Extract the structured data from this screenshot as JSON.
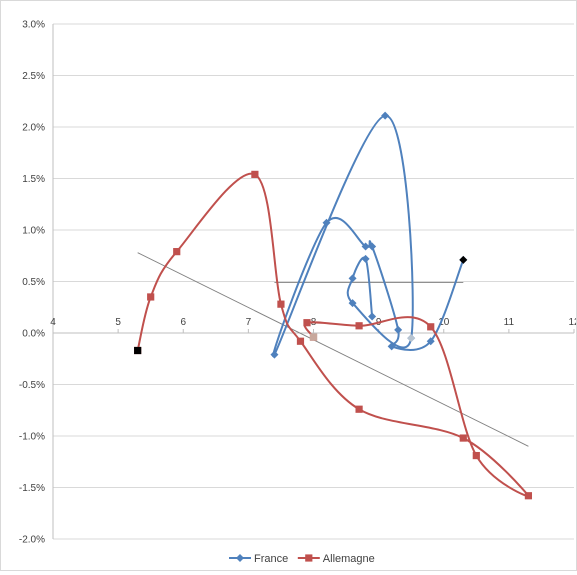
{
  "chart_data": {
    "type": "scatter",
    "title": "",
    "xlabel": "",
    "ylabel": "",
    "xlim": [
      4,
      12
    ],
    "ylim": [
      -2.0,
      3.0
    ],
    "x_ticks": [
      "4",
      "5",
      "6",
      "7",
      "8",
      "9",
      "10",
      "11",
      "12"
    ],
    "y_ticks": [
      "3.0%",
      "2.5%",
      "2.0%",
      "1.5%",
      "1.0%",
      "0.5%",
      "0.0%",
      "-0.5%",
      "-1.0%",
      "-1.5%",
      "-2.0%"
    ],
    "y_unit": "%",
    "grid": "horizontal",
    "legend_position": "bottom",
    "series": [
      {
        "name": "France",
        "color": "#4f81bd",
        "marker": "diamond",
        "smooth": true,
        "points": [
          [
            10.3,
            0.71
          ],
          [
            9.8,
            -0.08
          ],
          [
            9.2,
            -0.13
          ],
          [
            9.3,
            0.03
          ],
          [
            8.9,
            0.84
          ],
          [
            8.8,
            0.84
          ],
          [
            8.2,
            1.07
          ],
          [
            7.4,
            -0.21
          ],
          [
            9.1,
            2.11
          ],
          [
            9.5,
            -0.05
          ],
          [
            8.6,
            0.29
          ],
          [
            8.6,
            0.53
          ],
          [
            8.8,
            0.72
          ],
          [
            8.9,
            0.16
          ]
        ]
      },
      {
        "name": "Allemagne",
        "color": "#c0504d",
        "marker": "square",
        "smooth": true,
        "points": [
          [
            5.3,
            -0.17
          ],
          [
            5.5,
            0.35
          ],
          [
            5.9,
            0.79
          ],
          [
            7.1,
            1.54
          ],
          [
            7.5,
            0.28
          ],
          [
            7.8,
            -0.08
          ],
          [
            8.7,
            -0.74
          ],
          [
            10.3,
            -1.02
          ],
          [
            11.3,
            -1.58
          ],
          [
            10.5,
            -1.19
          ],
          [
            9.8,
            0.06
          ],
          [
            8.7,
            0.07
          ],
          [
            7.9,
            0.1
          ],
          [
            8.0,
            -0.04
          ]
        ]
      }
    ],
    "highlight_points": [
      {
        "x": 5.3,
        "y": -0.17,
        "color": "#000000",
        "marker": "square"
      },
      {
        "x": 10.3,
        "y": 0.71,
        "color": "#000000",
        "marker": "diamond"
      },
      {
        "x": 8.0,
        "y": -0.04,
        "color": "#c8a89c",
        "marker": "square"
      },
      {
        "x": 9.5,
        "y": -0.05,
        "color": "#b8c4d0",
        "marker": "diamond"
      }
    ],
    "reference_lines": [
      {
        "x1": 5.3,
        "y1": 0.78,
        "x2": 11.3,
        "y2": -1.1,
        "color": "#808080"
      },
      {
        "x1": 7.4,
        "y1": 0.49,
        "x2": 10.3,
        "y2": 0.49,
        "color": "#808080"
      }
    ]
  }
}
